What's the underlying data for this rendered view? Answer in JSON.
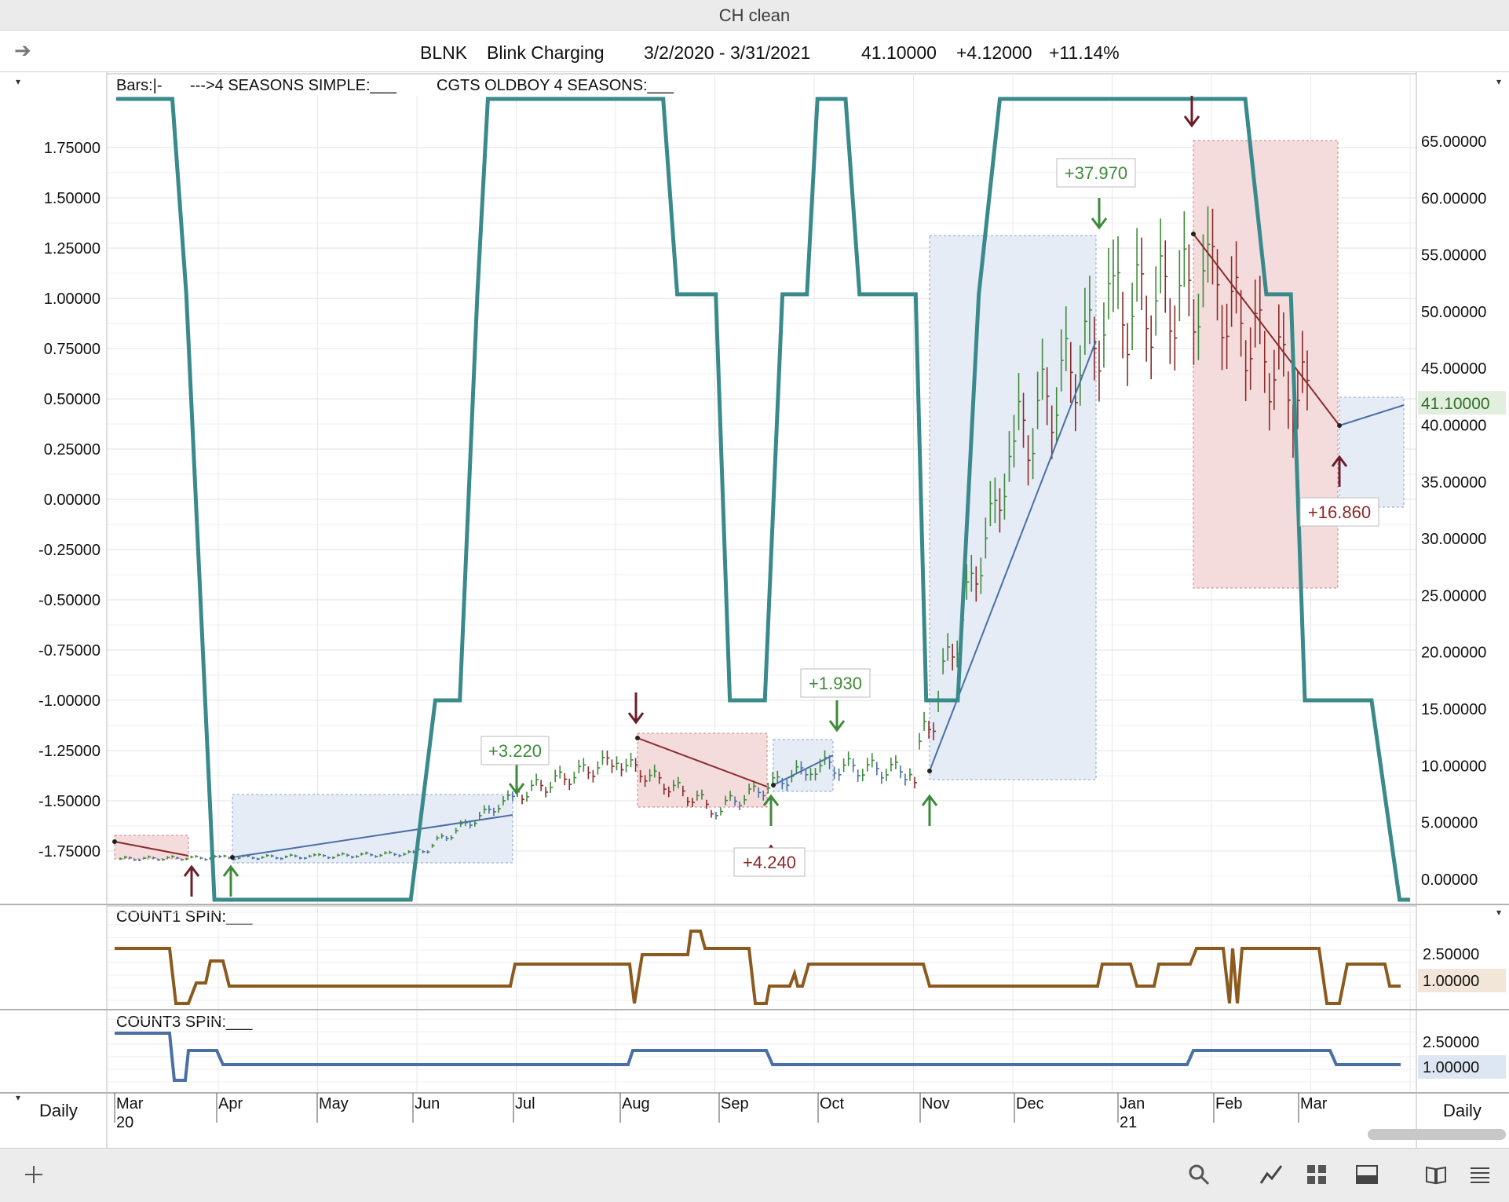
{
  "window": {
    "title": "CH clean"
  },
  "header": {
    "ticker": "BLNK",
    "name": "Blink Charging",
    "range": "3/2/2020 - 3/31/2021",
    "last": "41.10000",
    "change": "+4.12000",
    "pct": "+11.14%"
  },
  "legend": {
    "bars": "Bars:|-",
    "simple": "--->4 SEASONS SIMPLE:___",
    "oldboy": "CGTS OLDBOY 4 SEASONS:___"
  },
  "panels": {
    "count1": "COUNT1 SPIN:___",
    "count3": "COUNT3 SPIN:___",
    "period_left": "Daily",
    "period_right": "Daily"
  },
  "colors": {
    "teal": "#3a8a8c",
    "brown": "#8b5a1e",
    "blue": "#4a6fa5",
    "up": "#3e8a3a",
    "down": "#8a2a2a",
    "box_blue": "#dfe7f4",
    "box_red": "#f4dcdc"
  },
  "chart_data": {
    "type": "line",
    "x": [
      "Mar 20",
      "Apr",
      "May",
      "Jun",
      "Jul",
      "Aug",
      "Sep",
      "Oct",
      "Nov",
      "Dec",
      "Jan 21",
      "Feb",
      "Mar"
    ],
    "left_axis": {
      "ticks": [
        "1.75000",
        "1.50000",
        "1.25000",
        "1.00000",
        "0.75000",
        "0.50000",
        "0.25000",
        "0.00000",
        "-0.25000",
        "-0.50000",
        "-0.75000",
        "-1.00000",
        "-1.25000",
        "-1.50000",
        "-1.75000"
      ],
      "range": [
        -2.0,
        2.0
      ]
    },
    "right_axis": {
      "ticks": [
        "65.00000",
        "60.00000",
        "55.00000",
        "50.00000",
        "45.00000",
        "40.00000",
        "35.00000",
        "30.00000",
        "25.00000",
        "20.00000",
        "15.00000",
        "10.00000",
        "5.00000",
        "0.00000"
      ],
      "range": [
        -1.5,
        68
      ]
    },
    "price_series_monthly": [
      {
        "month": "Mar 20",
        "close": 1.8
      },
      {
        "month": "Apr",
        "close": 1.9
      },
      {
        "month": "May",
        "close": 2.0
      },
      {
        "month": "Jun",
        "close": 2.3
      },
      {
        "month": "Jul",
        "close": 7.5
      },
      {
        "month": "Aug",
        "close": 10.5
      },
      {
        "month": "Sep",
        "close": 6.2
      },
      {
        "month": "Oct",
        "close": 10.0
      },
      {
        "month": "Nov",
        "close": 9.5
      },
      {
        "month": "Dec",
        "close": 38.0
      },
      {
        "month": "Jan 21",
        "close": 50.0
      },
      {
        "month": "Feb",
        "close": 52.0
      },
      {
        "month": "Mar",
        "close": 41.1
      }
    ],
    "seasons_oscillator": [
      [
        0,
        1.95
      ],
      [
        0.8,
        1.95
      ],
      [
        1.0,
        1.02
      ],
      [
        1.4,
        -2.0
      ],
      [
        4.2,
        -2.0
      ],
      [
        4.55,
        -1.0
      ],
      [
        4.9,
        -1.0
      ],
      [
        5.15,
        1.02
      ],
      [
        5.3,
        1.95
      ],
      [
        7.8,
        1.95
      ],
      [
        8.0,
        1.02
      ],
      [
        8.55,
        1.02
      ],
      [
        8.75,
        -1.0
      ],
      [
        9.25,
        -1.0
      ],
      [
        9.5,
        1.02
      ],
      [
        9.85,
        1.02
      ],
      [
        10.0,
        1.95
      ],
      [
        10.4,
        1.95
      ],
      [
        10.6,
        1.02
      ],
      [
        11.4,
        1.02
      ],
      [
        11.55,
        -1.0
      ],
      [
        12.0,
        -1.0
      ],
      [
        12.3,
        1.02
      ],
      [
        12.6,
        1.95
      ],
      [
        16.1,
        1.95
      ],
      [
        16.4,
        1.02
      ],
      [
        16.75,
        1.02
      ],
      [
        16.95,
        -1.0
      ],
      [
        17.9,
        -1.0
      ],
      [
        18.3,
        -2.0
      ],
      [
        18.45,
        -2.0
      ]
    ],
    "trade_labels": [
      "+3.220",
      "+4.240",
      "+1.930",
      "+37.970",
      "+16.860"
    ],
    "current_price_label": "41.10000",
    "count1_ticks": [
      "2.50000",
      "1.00000"
    ],
    "count3_ticks": [
      "2.50000",
      "1.00000"
    ],
    "grid": true
  }
}
